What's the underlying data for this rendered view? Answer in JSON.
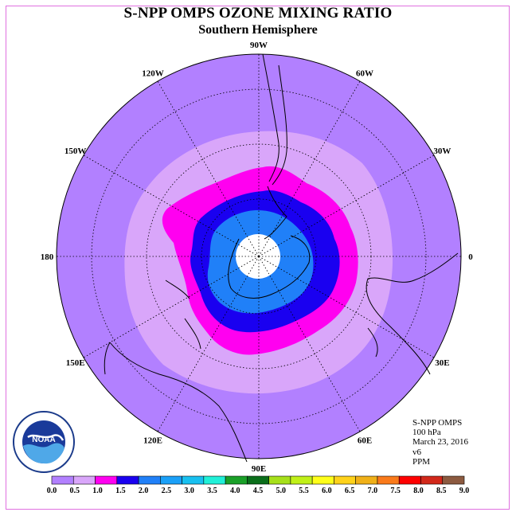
{
  "header": {
    "title": "S-NPP OMPS OZONE MIXING RATIO",
    "subtitle": "Southern Hemisphere"
  },
  "map": {
    "projection": "south-polar-stereographic",
    "longitude_labels": [
      "0",
      "30E",
      "60E",
      "90E",
      "120E",
      "150E",
      "180",
      "150W",
      "120W",
      "90W",
      "60W",
      "30W"
    ],
    "ozone_levels_ppm": {
      "level_0_5_to_1_0_color": "#d9a6fa",
      "level_1_0_to_1_5_color": "#ff00f0",
      "level_1_5_to_2_0_color": "#1a00f0",
      "level_2_0_to_2_5_color": "#2080f8",
      "outer_background_color": "#b280ff",
      "pole_cap_color": "#ffffff"
    }
  },
  "info": {
    "instrument": "S-NPP OMPS",
    "level": "100 hPa",
    "date": "March 23, 2016",
    "version": "v6",
    "units": "PPM"
  },
  "colorbar": {
    "ticks": [
      "0.0",
      "0.5",
      "1.0",
      "1.5",
      "2.0",
      "2.5",
      "3.0",
      "3.5",
      "4.0",
      "4.5",
      "5.0",
      "5.5",
      "6.0",
      "6.5",
      "7.0",
      "7.5",
      "8.0",
      "8.5",
      "9.0"
    ],
    "colors": [
      "#b280ff",
      "#d9a6fa",
      "#ff00f0",
      "#1a00f0",
      "#2080f8",
      "#1aa0f8",
      "#18c0f0",
      "#20f0d8",
      "#1aa028",
      "#0a6e1a",
      "#a6e01a",
      "#c0f018",
      "#ffff1a",
      "#ffd21a",
      "#f0b018",
      "#fa7a1a",
      "#ff0000",
      "#d2281a",
      "#8c5a40"
    ]
  },
  "logo": {
    "text": "NOAA",
    "ring_text": "NATIONAL OCEANIC AND ATMOSPHERIC ADMINISTRATION · U.S. DEPARTMENT OF COMMERCE"
  }
}
